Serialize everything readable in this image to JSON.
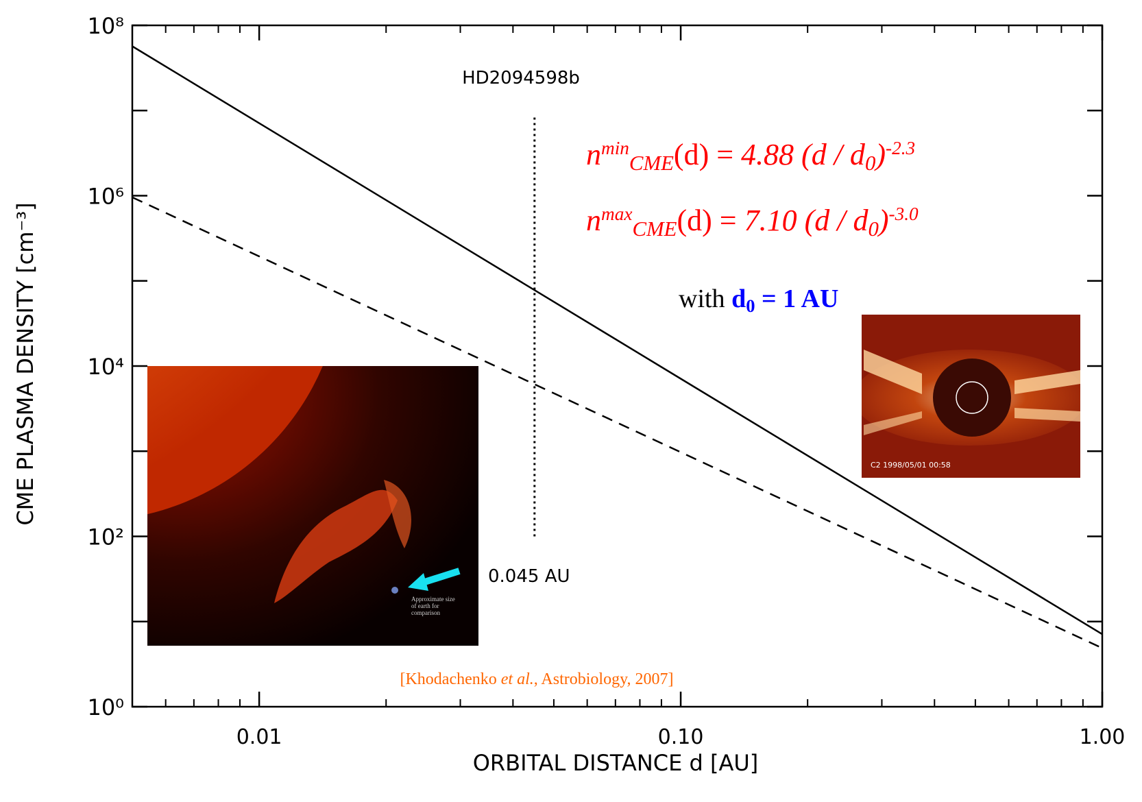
{
  "chart_data": {
    "type": "line",
    "xlabel": "ORBITAL DISTANCE d [AU]",
    "ylabel": "CME PLASMA DENSITY [cm⁻³]",
    "log_x": true,
    "log_y": true,
    "xlim": [
      0.005,
      1.0
    ],
    "ylim": [
      1,
      100000000
    ],
    "xticks": [
      0.01,
      {
        "value": 0.1,
        "label": "0.10"
      },
      {
        "value": 1,
        "label": "1.00"
      }
    ],
    "xminor": [
      0.006,
      0.007,
      0.008,
      0.009,
      0.02,
      0.03,
      0.04,
      0.05,
      0.06,
      0.07,
      0.08,
      0.09,
      0.2,
      0.3,
      0.4,
      0.5,
      0.6,
      0.7,
      0.8,
      0.9
    ],
    "yticks": [
      {
        "value": 1,
        "label": "10⁰"
      },
      {
        "value": 100,
        "label": "10²"
      },
      {
        "value": 10000,
        "label": "10⁴"
      },
      {
        "value": 1000000,
        "label": "10⁶"
      },
      {
        "value": 100000000,
        "label": "10⁸"
      }
    ],
    "yminor": [
      10,
      1000,
      100000,
      10000000
    ],
    "x": [
      0.005,
      0.01,
      0.1,
      1.0
    ],
    "series": [
      {
        "color": "#000000",
        "dash": "solid",
        "values": [
          56800000,
          7100000,
          7100,
          7.1
        ]
      },
      {
        "color": "#000000",
        "dash": "dashed",
        "values": [
          957000,
          194000,
          974,
          4.88
        ]
      }
    ],
    "marker_line": {
      "x": 0.045,
      "y": [
        100,
        9000000
      ],
      "label_top": "HD2094598b",
      "label_bottom": "0.045 AU"
    },
    "equations": [
      [
        {
          "text": "n",
          "style": "italic",
          "color": "#ff0000"
        },
        {
          "text": "min",
          "style": "italic sup",
          "color": "#ff0000"
        },
        {
          "text": "CME",
          "style": "italic sub",
          "color": "#ff0000"
        },
        {
          "text": "(d) = ",
          "style": "normal",
          "color": "#ff0000"
        },
        {
          "text": "4.88 (d / d",
          "style": "italic",
          "color": "#ff0000"
        },
        {
          "text": "0",
          "style": "italic sub",
          "color": "#ff0000"
        },
        {
          "text": ")",
          "style": "italic",
          "color": "#ff0000"
        },
        {
          "text": "-2.3",
          "style": "italic sup",
          "color": "#ff0000"
        }
      ],
      [
        {
          "text": "n",
          "style": "italic",
          "color": "#ff0000"
        },
        {
          "text": "max",
          "style": "italic sup",
          "color": "#ff0000"
        },
        {
          "text": "CME",
          "style": "italic sub",
          "color": "#ff0000"
        },
        {
          "text": "(d) = ",
          "style": "normal",
          "color": "#ff0000"
        },
        {
          "text": "7.10 (d / d",
          "style": "italic",
          "color": "#ff0000"
        },
        {
          "text": "0",
          "style": "italic sub",
          "color": "#ff0000"
        },
        {
          "text": ")",
          "style": "italic",
          "color": "#ff0000"
        },
        {
          "text": "-3.0",
          "style": "italic sup",
          "color": "#ff0000"
        }
      ]
    ],
    "note": [
      {
        "text": "with ",
        "style": "normal",
        "color": "#000000"
      },
      {
        "text": "d",
        "style": "bold",
        "color": "#0000ff"
      },
      {
        "text": "0",
        "style": "bold sub",
        "color": "#0000ff"
      },
      {
        "text": " = 1 AU",
        "style": "bold",
        "color": "#0000ff"
      }
    ],
    "citation": [
      {
        "text": "[Khodachenko ",
        "style": "normal",
        "color": "#ff6600"
      },
      {
        "text": "et al.",
        "style": "italic",
        "color": "#ff6600"
      },
      {
        "text": ", Astrobiology, 2007]",
        "style": "normal",
        "color": "#ff6600"
      }
    ],
    "insets": [
      {
        "caption": [
          "Approximate size",
          "of earth for",
          "comparison"
        ]
      },
      {
        "caption": [
          "C2 1998/05/01 00:58"
        ]
      }
    ]
  }
}
